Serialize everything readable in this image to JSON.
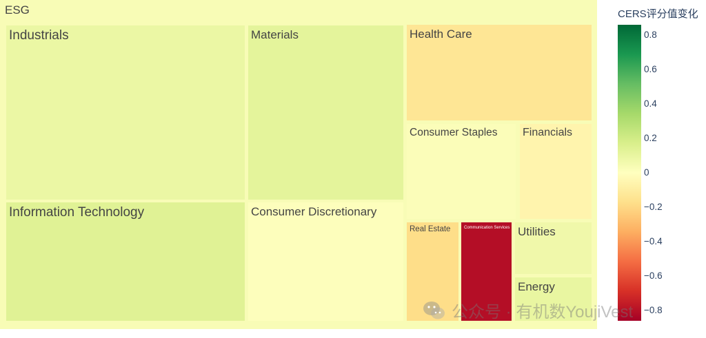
{
  "chart_data": {
    "type": "treemap",
    "root_label": "ESG",
    "colorbar": {
      "title": "CERS评分值变化",
      "range": [
        -0.86,
        0.86
      ],
      "ticks": [
        0.8,
        0.6,
        0.4,
        0.2,
        0,
        -0.2,
        -0.4,
        -0.6,
        -0.8
      ],
      "tick_labels": [
        "0.8",
        "0.6",
        "0.4",
        "0.2",
        "0",
        "−0.2",
        "−0.4",
        "−0.6",
        "−0.8"
      ],
      "colorscale": [
        "#a50026",
        "#d73027",
        "#f46d43",
        "#fdae61",
        "#fee08b",
        "#ffffbf",
        "#d9ef8b",
        "#a6d96a",
        "#66bd63",
        "#1a9850",
        "#006837"
      ]
    },
    "sectors": [
      {
        "label": "Industrials",
        "value": 0.09
      },
      {
        "label": "Information Technology",
        "value": 0.14
      },
      {
        "label": "Materials",
        "value": 0.12
      },
      {
        "label": "Consumer Discretionary",
        "value": 0.01
      },
      {
        "label": "Health Care",
        "value": -0.14
      },
      {
        "label": "Consumer Staples",
        "value": 0.02
      },
      {
        "label": "Financials",
        "value": -0.06
      },
      {
        "label": "Real Estate",
        "value": -0.18
      },
      {
        "label": "Communication Services",
        "value": -0.81
      },
      {
        "label": "Utilities",
        "value": 0.07
      },
      {
        "label": "Energy",
        "value": 0.1
      }
    ]
  },
  "watermark": {
    "text": "公众号 · 有机数YoujiVest",
    "icon": "wechat-icon"
  }
}
